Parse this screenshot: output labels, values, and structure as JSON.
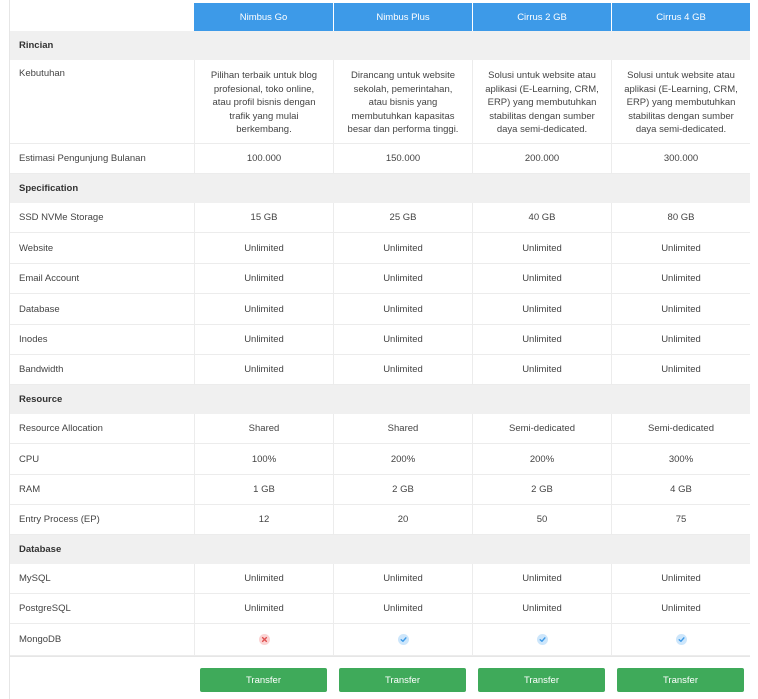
{
  "plans": [
    "Nimbus Go",
    "Nimbus Plus",
    "Cirrus 2 GB",
    "Cirrus 4 GB"
  ],
  "rows": [
    {
      "type": "section",
      "label": "Rincian"
    },
    {
      "type": "tall",
      "label": "Kebutuhan",
      "values": [
        "Pilihan terbaik untuk blog profesional, toko online, atau profil bisnis dengan trafik yang mulai berkembang.",
        "Dirancang untuk website sekolah, pemerintahan, atau bisnis yang membutuhkan kapasitas besar dan performa tinggi.",
        "Solusi untuk website atau aplikasi (E-Learning, CRM, ERP) yang membutuhkan stabilitas dengan sumber daya semi-dedicated.",
        "Solusi untuk website atau aplikasi (E-Learning, CRM, ERP) yang membutuhkan stabilitas dengan sumber daya semi-dedicated."
      ]
    },
    {
      "type": "row",
      "label": "Estimasi Pengunjung Bulanan",
      "values": [
        "100.000",
        "150.000",
        "200.000",
        "300.000"
      ]
    },
    {
      "type": "section",
      "label": "Specification"
    },
    {
      "type": "row",
      "label": "SSD NVMe Storage",
      "values": [
        "15 GB",
        "25 GB",
        "40 GB",
        "80 GB"
      ]
    },
    {
      "type": "row",
      "label": "Website",
      "values": [
        "Unlimited",
        "Unlimited",
        "Unlimited",
        "Unlimited"
      ]
    },
    {
      "type": "row",
      "label": "Email Account",
      "values": [
        "Unlimited",
        "Unlimited",
        "Unlimited",
        "Unlimited"
      ]
    },
    {
      "type": "row",
      "label": "Database",
      "values": [
        "Unlimited",
        "Unlimited",
        "Unlimited",
        "Unlimited"
      ]
    },
    {
      "type": "row",
      "label": "Inodes",
      "values": [
        "Unlimited",
        "Unlimited",
        "Unlimited",
        "Unlimited"
      ]
    },
    {
      "type": "row",
      "label": "Bandwidth",
      "values": [
        "Unlimited",
        "Unlimited",
        "Unlimited",
        "Unlimited"
      ]
    },
    {
      "type": "section",
      "label": "Resource"
    },
    {
      "type": "row",
      "label": "Resource Allocation",
      "values": [
        "Shared",
        "Shared",
        "Semi-dedicated",
        "Semi-dedicated"
      ]
    },
    {
      "type": "row",
      "label": "CPU",
      "values": [
        "100%",
        "200%",
        "200%",
        "300%"
      ]
    },
    {
      "type": "row",
      "label": "RAM",
      "values": [
        "1 GB",
        "2 GB",
        "2 GB",
        "4 GB"
      ]
    },
    {
      "type": "row",
      "label": "Entry Process (EP)",
      "values": [
        "12",
        "20",
        "50",
        "75"
      ]
    },
    {
      "type": "section",
      "label": "Database"
    },
    {
      "type": "row",
      "label": "MySQL",
      "values": [
        "Unlimited",
        "Unlimited",
        "Unlimited",
        "Unlimited"
      ]
    },
    {
      "type": "row",
      "label": "PostgreSQL",
      "values": [
        "Unlimited",
        "Unlimited",
        "Unlimited",
        "Unlimited"
      ]
    },
    {
      "type": "icons",
      "label": "MongoDB",
      "icons": [
        "x-circle-icon",
        "check-circle-icon",
        "check-circle-icon",
        "check-circle-icon"
      ]
    }
  ],
  "button_label": "Transfer",
  "colors": {
    "header": "#3d9ae8",
    "button": "#3faa5a",
    "section_bg": "#f0f0f0",
    "x_icon": "#e05252",
    "check_icon": "#3d9ae8"
  }
}
